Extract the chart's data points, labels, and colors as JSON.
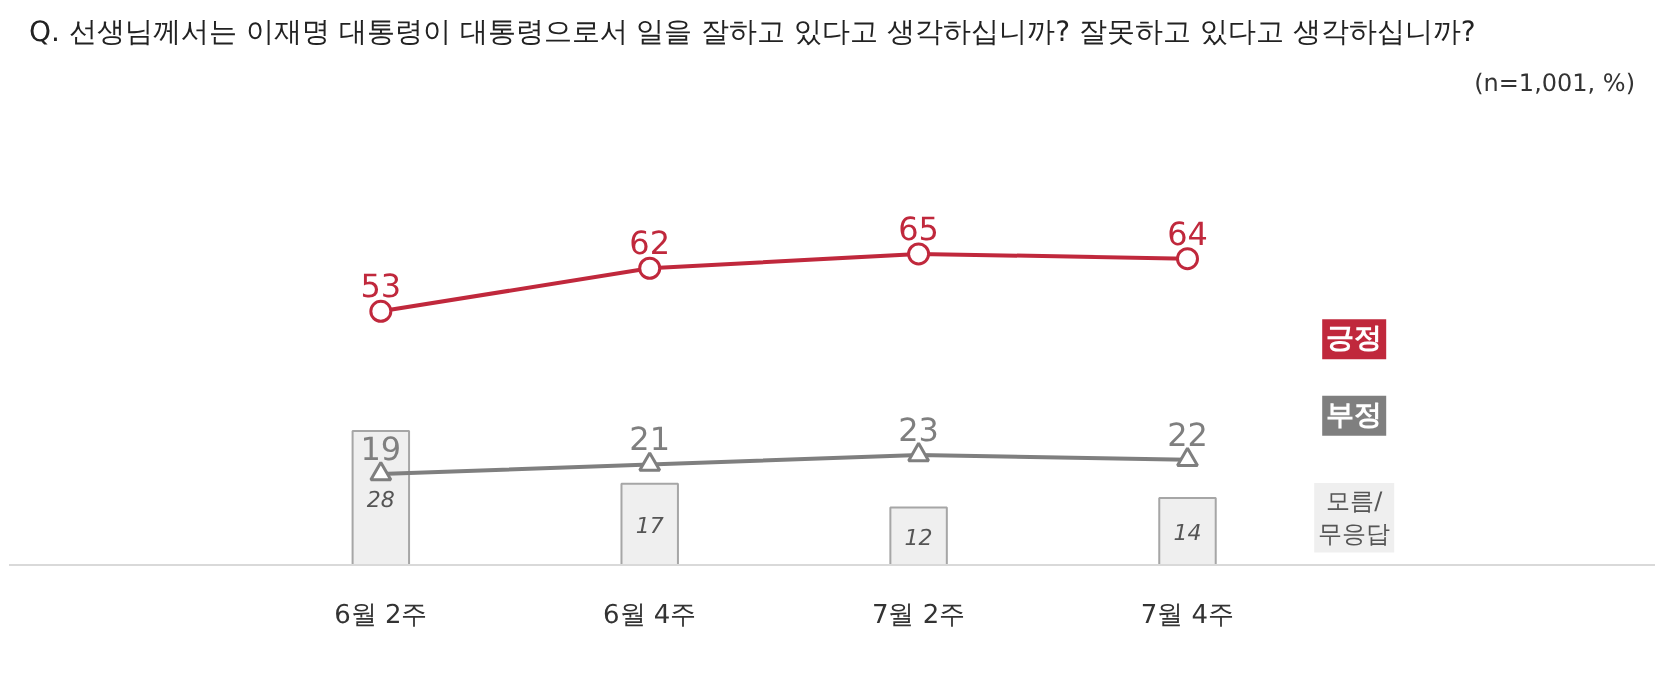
{
  "chart_data": {
    "type": "line",
    "title": "Q. 선생님께서는 이재명 대통령이 대통령으로서 일을 잘하고 있다고 생각하십니까? 잘못하고 있다고 생각하십니까?",
    "annotations": [
      "(n=1,001, %)"
    ],
    "categories": [
      "6월 2주",
      "6월 4주",
      "7월 2주",
      "7월 4주"
    ],
    "series": [
      {
        "name": "긍정",
        "color": "#c0283c",
        "values": [
          53,
          62,
          65,
          64
        ],
        "marker": "circle"
      },
      {
        "name": "부정",
        "color": "#7f7f7f",
        "values": [
          19,
          21,
          23,
          22
        ],
        "marker": "triangle"
      },
      {
        "name": "모름/\n무응답",
        "type": "bar",
        "color": "#efefef",
        "values": [
          28,
          17,
          12,
          14
        ]
      }
    ],
    "data_labels": true,
    "tick_labels": "x"
  }
}
